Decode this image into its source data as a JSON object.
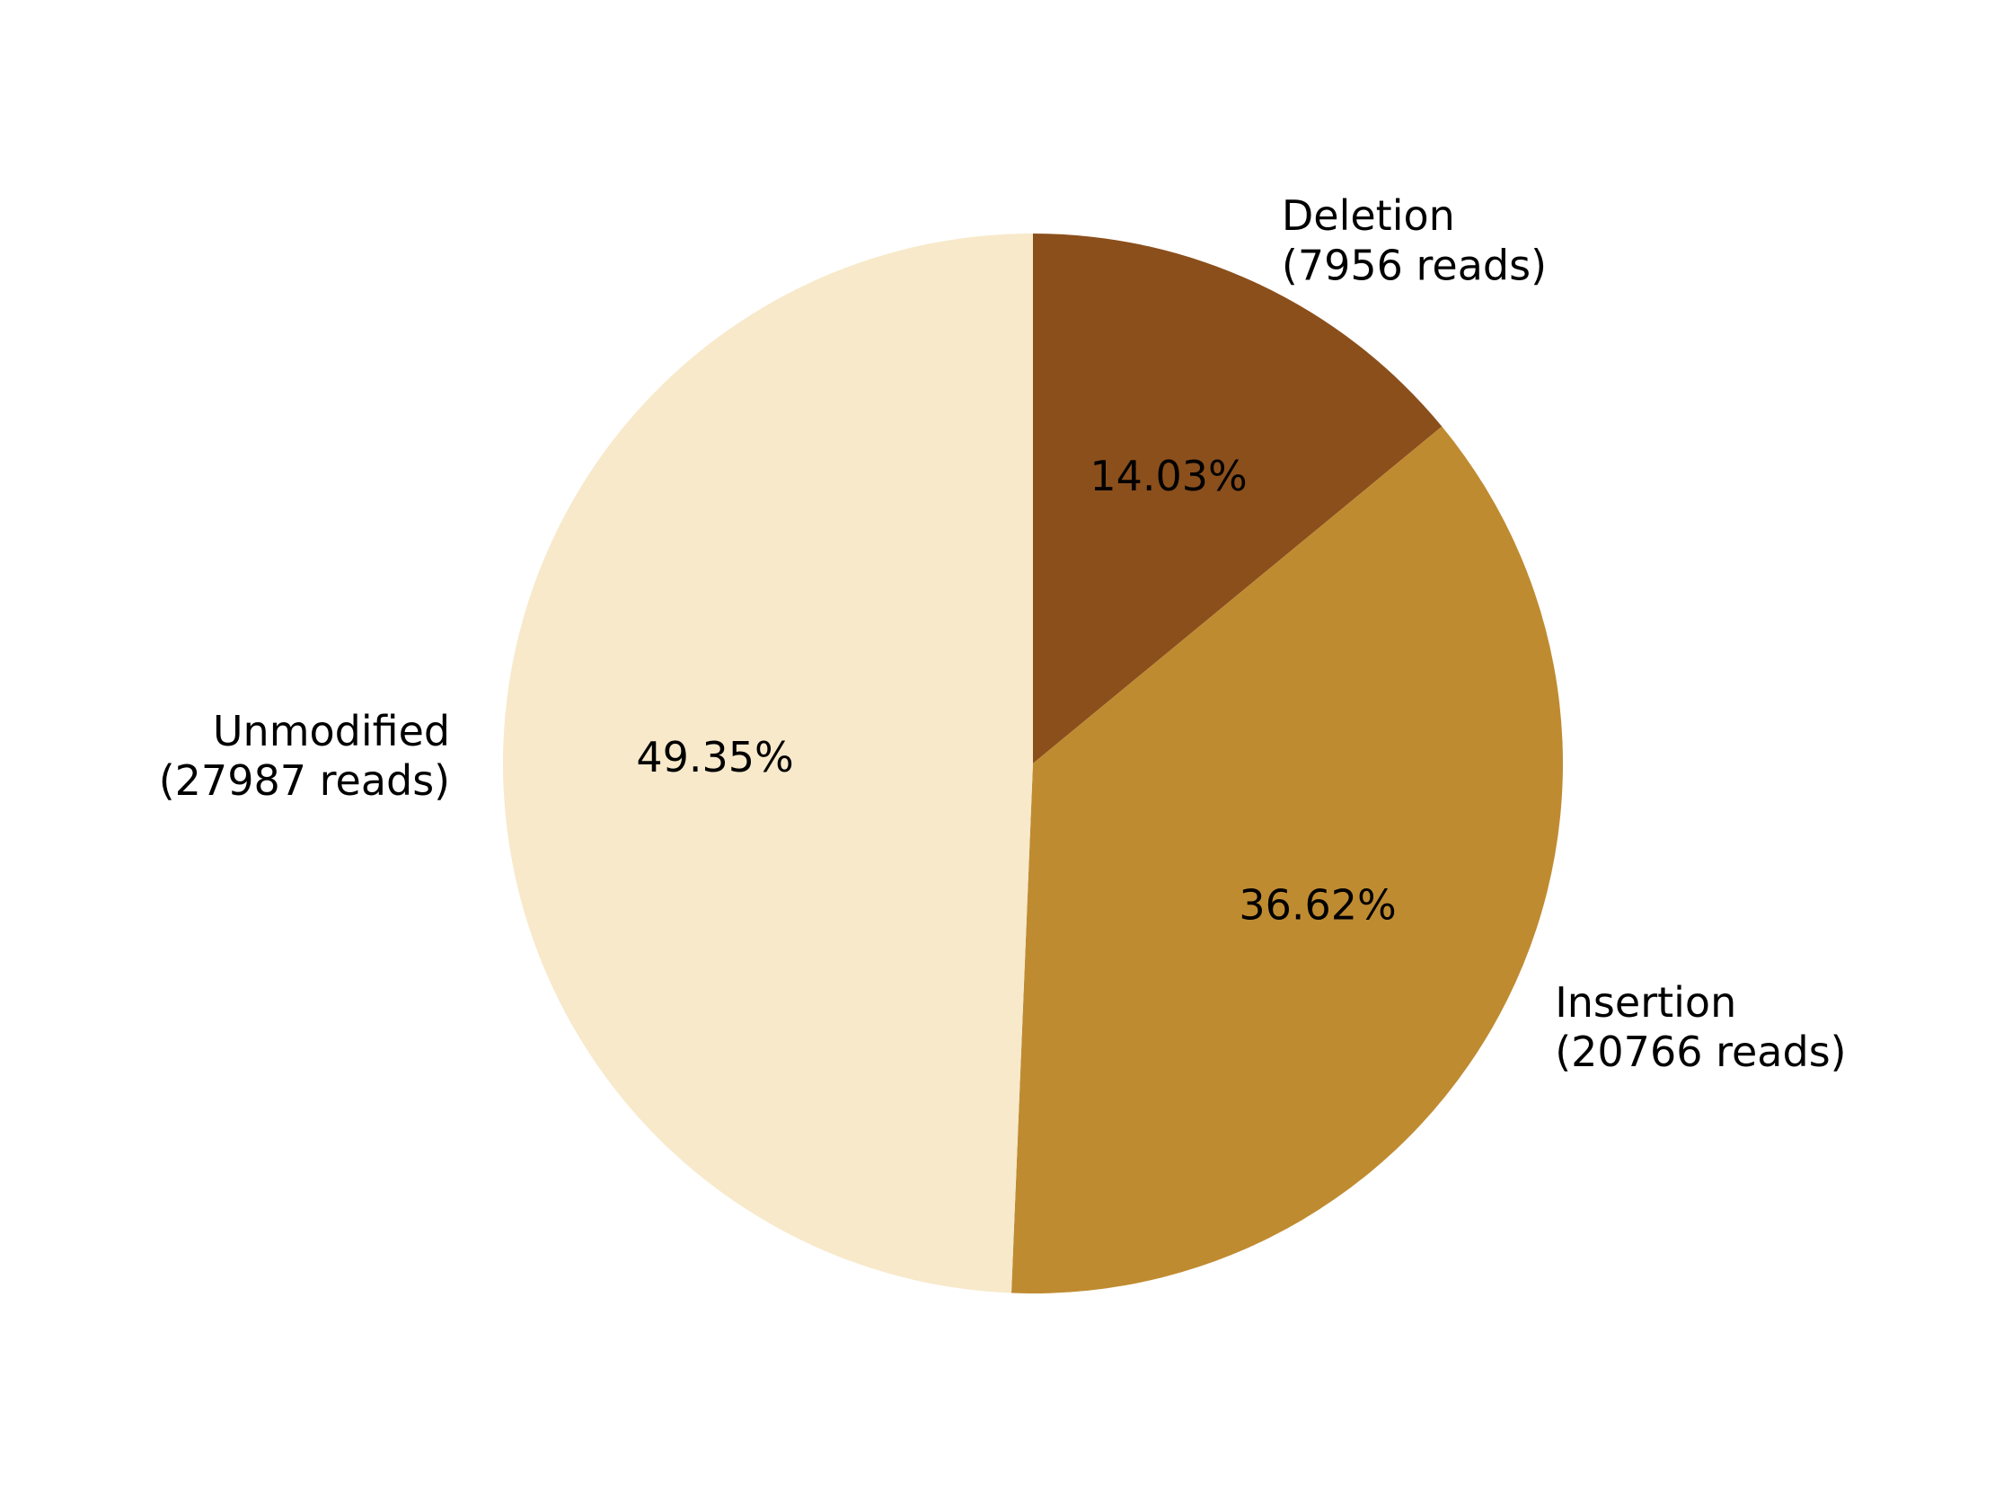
{
  "chart_data": {
    "type": "pie",
    "start_angle_deg": 90,
    "direction": "clockwise",
    "slices": [
      {
        "label": "Deletion",
        "reads_label": "(7956 reads)",
        "value": 7956,
        "pct_label": "14.03%",
        "color": "#8B4F1C"
      },
      {
        "label": "Insertion",
        "reads_label": "(20766 reads)",
        "value": 20766,
        "pct_label": "36.62%",
        "color": "#BF8B31"
      },
      {
        "label": "Unmodified",
        "reads_label": "(27987 reads)",
        "value": 27987,
        "pct_label": "49.35%",
        "color": "#F7E9CA"
      }
    ]
  }
}
